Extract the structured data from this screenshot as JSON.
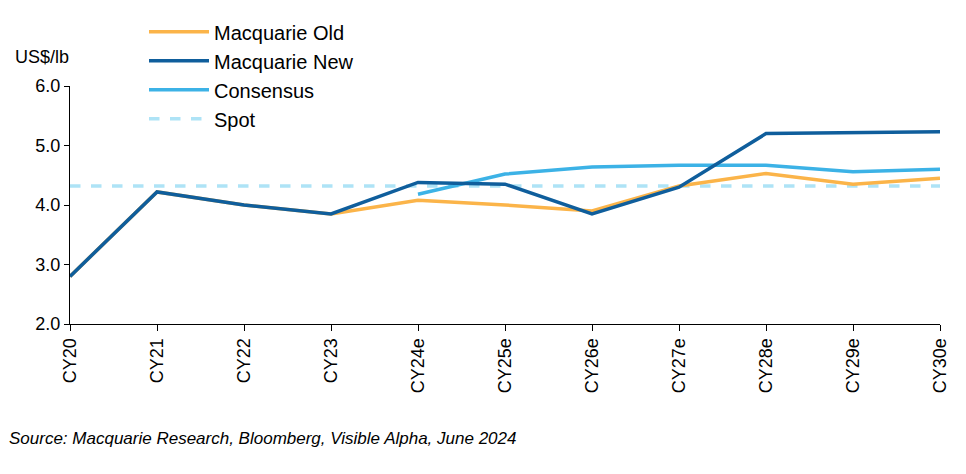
{
  "chart_data": {
    "type": "line",
    "ylabel": "US$/lb",
    "source": "Source: Macquarie Research, Bloomberg, Visible Alpha, June 2024",
    "categories": [
      "CY20",
      "CY21",
      "CY22",
      "CY23",
      "CY24e",
      "CY25e",
      "CY26e",
      "CY27e",
      "CY28e",
      "CY29e",
      "CY30e"
    ],
    "series": [
      {
        "name": "Macquarie Old",
        "color": "#FBB449",
        "line_style": "solid",
        "values": [
          2.8,
          4.22,
          4.0,
          3.85,
          4.08,
          4.0,
          3.9,
          4.32,
          4.53,
          4.35,
          4.45
        ]
      },
      {
        "name": "Macquarie New",
        "color": "#0F5E9C",
        "line_style": "solid",
        "values": [
          2.8,
          4.22,
          4.0,
          3.85,
          4.38,
          4.35,
          3.85,
          4.3,
          5.2,
          5.21,
          5.23
        ]
      },
      {
        "name": "Consensus",
        "color": "#3CB2E6",
        "line_style": "solid",
        "values": [
          null,
          null,
          null,
          null,
          4.18,
          4.52,
          4.64,
          4.67,
          4.67,
          4.56,
          4.6
        ]
      },
      {
        "name": "Spot",
        "color": "#AEE3F6",
        "line_style": "dashed",
        "values": [
          4.32,
          4.32,
          4.32,
          4.32,
          4.32,
          4.32,
          4.32,
          4.32,
          4.32,
          4.32,
          4.32
        ]
      }
    ],
    "ylim": [
      2,
      6
    ],
    "yticks": [
      {
        "value": 2,
        "label": "2.0"
      },
      {
        "value": 3,
        "label": "3.0"
      },
      {
        "value": 4,
        "label": "4.0"
      },
      {
        "value": 5,
        "label": "5.0"
      },
      {
        "value": 6,
        "label": "6.0"
      }
    ],
    "grid": false,
    "legend": "top"
  }
}
